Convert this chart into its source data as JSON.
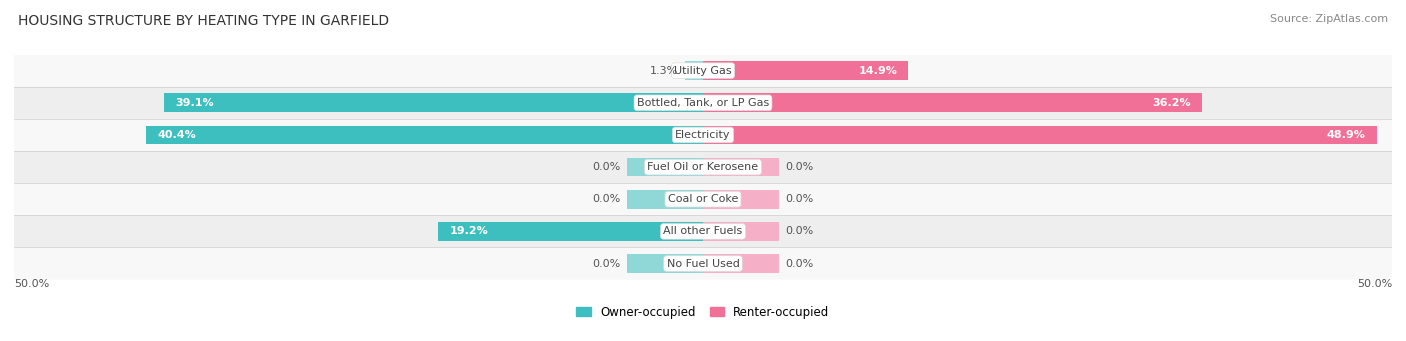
{
  "title": "HOUSING STRUCTURE BY HEATING TYPE IN GARFIELD",
  "source": "Source: ZipAtlas.com",
  "categories": [
    "Utility Gas",
    "Bottled, Tank, or LP Gas",
    "Electricity",
    "Fuel Oil or Kerosene",
    "Coal or Coke",
    "All other Fuels",
    "No Fuel Used"
  ],
  "owner_values": [
    1.3,
    39.1,
    40.4,
    0.0,
    0.0,
    19.2,
    0.0
  ],
  "renter_values": [
    14.9,
    36.2,
    48.9,
    0.0,
    0.0,
    0.0,
    0.0
  ],
  "owner_color": "#3DBFBF",
  "renter_color": "#F07098",
  "owner_color_light": "#90D8D8",
  "renter_color_light": "#F5B0C8",
  "axis_label_left": "50.0%",
  "axis_label_right": "50.0%",
  "x_max": 50.0,
  "title_fontsize": 10,
  "source_fontsize": 8,
  "bar_label_fontsize": 8,
  "cat_label_fontsize": 8,
  "stub_size": 5.5
}
